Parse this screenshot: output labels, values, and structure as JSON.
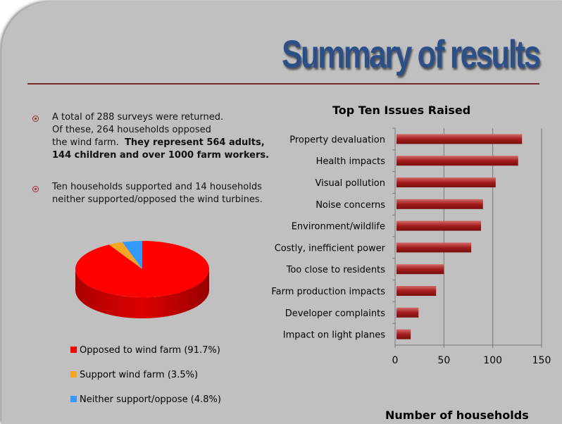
{
  "title": "Summary of results",
  "bullets": [
    {
      "line1": "A total of 288 surveys were returned.",
      "line2": "Of these, 264 households opposed",
      "line3": "the wind farm.",
      "bold1": "They represent 564 adults,",
      "bold2": "144 children and over 1000 farm workers."
    },
    {
      "line1": "Ten households supported and 14 households",
      "line2": "neither supported/opposed the wind turbines."
    }
  ],
  "chart_data": [
    {
      "type": "bar",
      "orientation": "horizontal",
      "title": "Top Ten Issues Raised",
      "xlabel": "Number of households",
      "xlim": [
        0,
        150
      ],
      "xticks": [
        0,
        50,
        100,
        150
      ],
      "grid": true,
      "categories": [
        "Property devaluation",
        "Health impacts",
        "Visual pollution",
        "Noise concerns",
        "Environment/wildlife",
        "Costly, inefficient power",
        "Too close to residents",
        "Farm production impacts",
        "Developer complaints",
        "Impact on light planes"
      ],
      "values": [
        130,
        126,
        103,
        90,
        88,
        78,
        50,
        42,
        24,
        16
      ],
      "color": "#a31d1d"
    },
    {
      "type": "pie",
      "categories": [
        "Opposed to wind farm (91.7%)",
        "Support wind farm (3.5%)",
        "Neither support/oppose (4.8%)"
      ],
      "values": [
        91.7,
        3.5,
        4.8
      ],
      "colors": [
        "#ff0000",
        "#f5a623",
        "#3399ff"
      ]
    }
  ]
}
